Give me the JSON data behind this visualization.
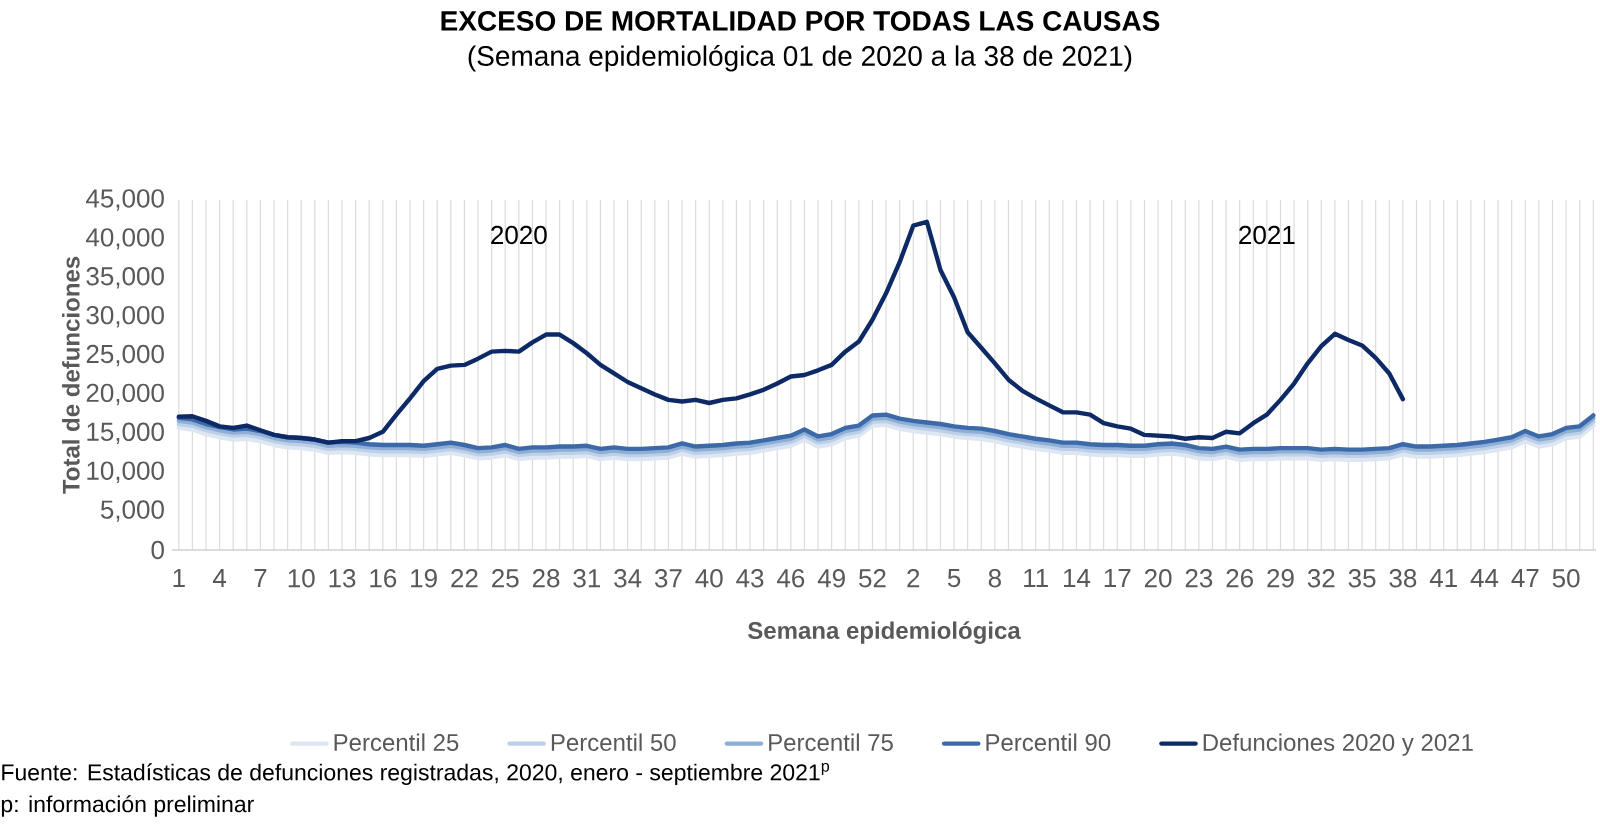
{
  "chart_data": {
    "type": "line",
    "title": "EXCESO DE MORTALIDAD POR TODAS LAS CAUSAS",
    "subtitle": "(Semana epidemiológica 01 de 2020 a la 38 de 2021)",
    "xlabel": "Semana epidemiológica",
    "ylabel": "Total de defunciones",
    "annotations": [
      "2020",
      "2021",
      "Fuente: Estadísticas de defunciones registradas, 2020, enero - septiembre 2021$^{p}$",
      "p: información preliminar"
    ],
    "categories": [
      "1",
      null,
      null,
      "4",
      null,
      null,
      "7",
      null,
      null,
      "10",
      null,
      null,
      "13",
      null,
      null,
      "16",
      null,
      null,
      "19",
      null,
      null,
      "22",
      null,
      null,
      "25",
      null,
      null,
      "28",
      null,
      null,
      "31",
      null,
      null,
      "34",
      null,
      null,
      "37",
      null,
      null,
      "40",
      null,
      null,
      "43",
      null,
      null,
      "46",
      null,
      null,
      "49",
      null,
      null,
      "52",
      null,
      null,
      "2",
      null,
      null,
      "5",
      null,
      null,
      "8",
      null,
      null,
      "11",
      null,
      null,
      "14",
      null,
      null,
      "17",
      null,
      null,
      "20",
      null,
      null,
      "23",
      null,
      null,
      "26",
      null,
      null,
      "29",
      null,
      null,
      "32",
      null,
      null,
      "35",
      null,
      null,
      "38",
      null,
      null,
      "41",
      null,
      null,
      "44",
      null,
      null,
      "47",
      null,
      null,
      "50",
      null,
      null
    ],
    "series": [
      {
        "name": "Percentil 25",
        "color": "#dde6f2",
        "values": [
          15700,
          15500,
          14900,
          14500,
          14200,
          14300,
          14000,
          13500,
          13200,
          13100,
          12900,
          12500,
          12600,
          12500,
          12300,
          12200,
          12200,
          12200,
          12100,
          12300,
          12500,
          12200,
          11800,
          11900,
          12200,
          11700,
          11900,
          11900,
          12000,
          12000,
          12100,
          11700,
          11900,
          11700,
          11700,
          11800,
          11900,
          12400,
          12000,
          12100,
          12200,
          12400,
          12500,
          12800,
          13100,
          13400,
          14200,
          13300,
          13600,
          14400,
          14700,
          16000,
          16100,
          15600,
          15300,
          15100,
          14900,
          14600,
          14400,
          14300,
          14000,
          13600,
          13300,
          13000,
          12800,
          12500,
          12500,
          12300,
          12200,
          12200,
          12100,
          12100,
          12300,
          12400,
          12200,
          11800,
          11700,
          12000,
          11600,
          11700,
          11700,
          11800,
          11800,
          11800,
          11600,
          11700,
          11600,
          11600,
          11700,
          11800,
          12300,
          12000,
          12000,
          12100,
          12200,
          12400,
          12600,
          12900,
          13200,
          14000,
          13300,
          13600,
          14400,
          14600,
          16000
        ]
      },
      {
        "name": "Percentil 50",
        "color": "#bcd0e8",
        "values": [
          16200,
          16000,
          15400,
          15000,
          14700,
          14800,
          14500,
          14000,
          13700,
          13600,
          13400,
          13000,
          13100,
          13000,
          12800,
          12700,
          12700,
          12700,
          12600,
          12800,
          13000,
          12700,
          12300,
          12400,
          12700,
          12200,
          12400,
          12400,
          12500,
          12500,
          12600,
          12200,
          12400,
          12200,
          12200,
          12300,
          12400,
          12900,
          12500,
          12600,
          12700,
          12900,
          13000,
          13300,
          13600,
          13900,
          14700,
          13800,
          14100,
          14900,
          15200,
          16500,
          16600,
          16100,
          15800,
          15600,
          15400,
          15100,
          14900,
          14800,
          14500,
          14100,
          13800,
          13500,
          13300,
          13000,
          13000,
          12800,
          12700,
          12700,
          12600,
          12600,
          12800,
          12900,
          12700,
          12300,
          12200,
          12500,
          12100,
          12200,
          12200,
          12300,
          12300,
          12300,
          12100,
          12200,
          12100,
          12100,
          12200,
          12300,
          12800,
          12500,
          12500,
          12600,
          12700,
          12900,
          13100,
          13400,
          13700,
          14500,
          13800,
          14100,
          14900,
          15100,
          16500
        ]
      },
      {
        "name": "Percentil 75",
        "color": "#8eaed8",
        "values": [
          16600,
          16400,
          15800,
          15400,
          15100,
          15200,
          14900,
          14400,
          14100,
          14000,
          13800,
          13400,
          13500,
          13400,
          13200,
          13100,
          13100,
          13100,
          13000,
          13200,
          13400,
          13100,
          12700,
          12800,
          13100,
          12600,
          12800,
          12800,
          12900,
          12900,
          13000,
          12600,
          12800,
          12600,
          12600,
          12700,
          12800,
          13300,
          12900,
          13000,
          13100,
          13300,
          13400,
          13700,
          14000,
          14300,
          15100,
          14200,
          14500,
          15300,
          15600,
          16900,
          17000,
          16500,
          16200,
          16000,
          15800,
          15500,
          15300,
          15200,
          14900,
          14500,
          14200,
          13900,
          13700,
          13400,
          13400,
          13200,
          13100,
          13100,
          13000,
          13000,
          13200,
          13300,
          13100,
          12700,
          12600,
          12900,
          12500,
          12600,
          12600,
          12700,
          12700,
          12700,
          12500,
          12600,
          12500,
          12500,
          12600,
          12700,
          13200,
          12900,
          12900,
          13000,
          13100,
          13300,
          13500,
          13800,
          14100,
          14900,
          14200,
          14500,
          15300,
          15500,
          16900
        ]
      },
      {
        "name": "Percentil 90",
        "color": "#3c6aa8",
        "values": [
          17000,
          16800,
          16200,
          15800,
          15500,
          15600,
          15300,
          14800,
          14500,
          14400,
          14200,
          13800,
          13900,
          13800,
          13600,
          13500,
          13500,
          13500,
          13400,
          13600,
          13800,
          13500,
          13100,
          13200,
          13500,
          13000,
          13200,
          13200,
          13300,
          13300,
          13400,
          13000,
          13200,
          13000,
          13000,
          13100,
          13200,
          13700,
          13300,
          13400,
          13500,
          13700,
          13800,
          14100,
          14400,
          14700,
          15500,
          14600,
          14900,
          15700,
          16000,
          17300,
          17400,
          16900,
          16600,
          16400,
          16200,
          15900,
          15700,
          15600,
          15300,
          14900,
          14600,
          14300,
          14100,
          13800,
          13800,
          13600,
          13500,
          13500,
          13400,
          13400,
          13600,
          13700,
          13500,
          13100,
          13000,
          13300,
          12900,
          13000,
          13000,
          13100,
          13100,
          13100,
          12900,
          13000,
          12900,
          12900,
          13000,
          13100,
          13600,
          13300,
          13300,
          13400,
          13500,
          13700,
          13900,
          14200,
          14500,
          15300,
          14600,
          14900,
          15700,
          15900,
          17300
        ]
      },
      {
        "name": "Defunciones 2020 y 2021",
        "color": "#0d2a66",
        "values": [
          17150,
          17200,
          16600,
          15900,
          15700,
          16000,
          15400,
          14800,
          14500,
          14400,
          14200,
          13800,
          14000,
          14000,
          14400,
          15200,
          17400,
          19500,
          21700,
          23300,
          23700,
          23800,
          24600,
          25500,
          25600,
          25500,
          26700,
          27700,
          27700,
          26600,
          25300,
          23800,
          22700,
          21600,
          20800,
          20000,
          19300,
          19100,
          19300,
          18900,
          19300,
          19500,
          20000,
          20600,
          21400,
          22300,
          22500,
          23100,
          23800,
          25500,
          26800,
          29600,
          33000,
          37000,
          41700,
          42200,
          36000,
          32500,
          28000,
          26000,
          24000,
          21900,
          20500,
          19500,
          18600,
          17700,
          17700,
          17400,
          16300,
          15900,
          15600,
          14800,
          14700,
          14600,
          14300,
          14500,
          14400,
          15200,
          15000,
          16300,
          17400,
          19300,
          21400,
          24000,
          26200,
          27800,
          27000,
          26300,
          24700,
          22700,
          19400,
          null,
          null,
          null,
          null,
          null,
          null,
          null,
          null,
          null,
          null,
          null,
          null,
          null,
          null
        ]
      }
    ],
    "ylim": [
      0,
      45000
    ],
    "yticks": [
      0,
      {
        "value": 5000,
        "label": "5,000"
      },
      {
        "value": 10000,
        "label": "10,000"
      },
      {
        "value": 15000,
        "label": "15,000"
      },
      {
        "value": 20000,
        "label": "20,000"
      },
      {
        "value": 25000,
        "label": "25,000"
      },
      {
        "value": 30000,
        "label": "30,000"
      },
      {
        "value": 35000,
        "label": "35,000"
      },
      {
        "value": 40000,
        "label": "40,000"
      },
      {
        "value": 45000,
        "label": "45,000"
      }
    ],
    "grid": "x",
    "legend": "bottom",
    "marker": "none",
    "line_style": "solid"
  }
}
